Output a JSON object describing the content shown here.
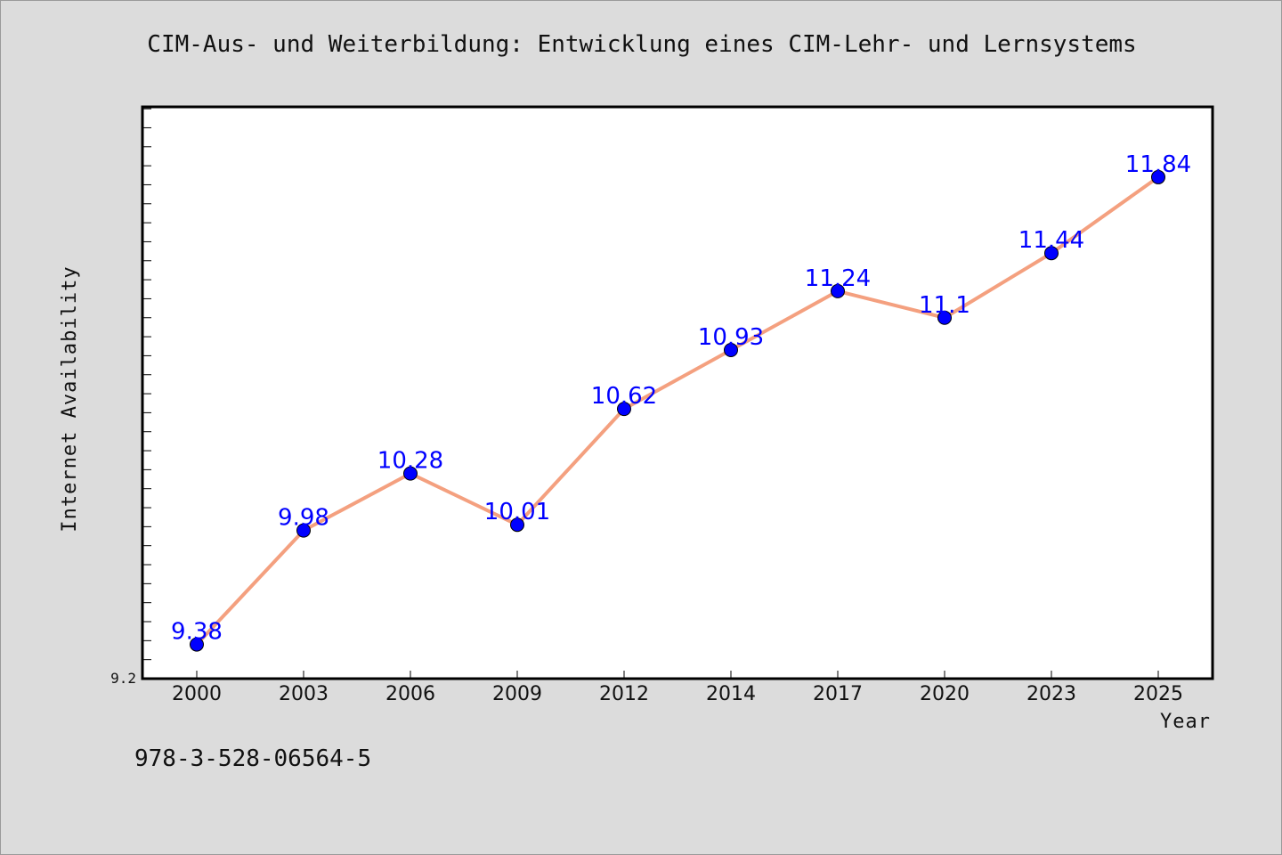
{
  "colors": {
    "line": "#f4a07f",
    "marker": "#0000ff",
    "label": "#0000ff",
    "plot_bg": "#ffffff",
    "figure_bg": "#dcdcdc"
  },
  "footer": {
    "isbn": "978-3-528-06564-5"
  },
  "chart_data": {
    "type": "line",
    "title": "CIM-Aus- und Weiterbildung: Entwicklung eines CIM-Lehr- und Lernsystems",
    "xlabel": "Year",
    "ylabel": "Internet Availability",
    "categories": [
      "2000",
      "2003",
      "2006",
      "2009",
      "2012",
      "2014",
      "2017",
      "2020",
      "2023",
      "2025"
    ],
    "series": [
      {
        "values": [
          9.38,
          9.98,
          10.28,
          10.01,
          10.62,
          10.93,
          11.24,
          11.1,
          11.44,
          11.84
        ]
      }
    ],
    "data_labels": [
      "9.38",
      "9.98",
      "10.28",
      "10.01",
      "10.62",
      "10.93",
      "11.24",
      "11.1",
      "11.44",
      "11.84"
    ],
    "ymin_label": "9.2",
    "ylim": [
      9.2,
      12.21
    ],
    "grid": false,
    "legend": "none"
  }
}
